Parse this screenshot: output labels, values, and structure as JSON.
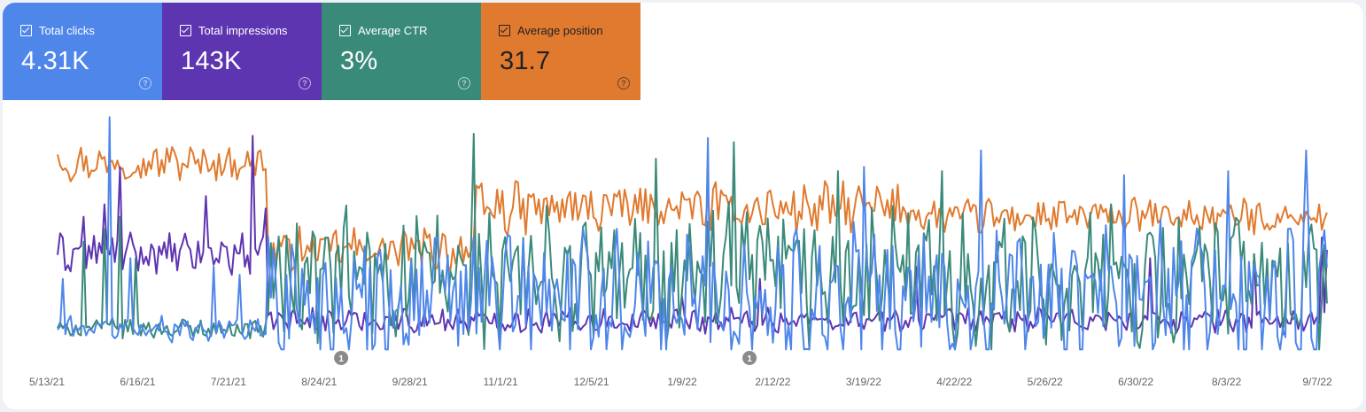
{
  "metrics": [
    {
      "id": "clicks",
      "label": "Total clicks",
      "value": "4.31K",
      "color": "#4e86ea",
      "text_color": "#ffffff",
      "selected": true
    },
    {
      "id": "impressions",
      "label": "Total impressions",
      "value": "143K",
      "color": "#5e35b1",
      "text_color": "#ffffff",
      "selected": true
    },
    {
      "id": "ctr",
      "label": "Average CTR",
      "value": "3%",
      "color": "#3a8a7a",
      "text_color": "#ffffff",
      "selected": true
    },
    {
      "id": "position",
      "label": "Average position",
      "value": "31.7",
      "color": "#e07a2f",
      "text_color": "#202124",
      "selected": true
    }
  ],
  "chart_data": {
    "type": "line",
    "x_start_date": "2021-05-13",
    "x_end_date": "2022-09-12",
    "x_tick_labels": [
      "5/13/21",
      "6/16/21",
      "7/21/21",
      "8/24/21",
      "9/28/21",
      "11/1/21",
      "12/5/21",
      "1/9/22",
      "2/12/22",
      "3/19/22",
      "4/22/22",
      "5/26/22",
      "6/30/22",
      "8/3/22",
      "9/7/22"
    ],
    "annotations": [
      {
        "label": "1",
        "date": "2021-08-30"
      },
      {
        "label": "1",
        "date": "2022-02-03"
      }
    ],
    "normalized": true,
    "y_range": [
      0,
      100
    ],
    "series": [
      {
        "name": "Average position",
        "color": "#e07a2f",
        "segments": [
          {
            "start": 0,
            "end": 80,
            "base": 86,
            "amplitude": 7,
            "spikes": [
              [
                0,
                90
              ],
              [
                42,
                93
              ],
              [
                78,
                92
              ]
            ]
          },
          {
            "start": 81,
            "end": 160,
            "base": 44,
            "amplitude": 9,
            "spikes": []
          },
          {
            "start": 161,
            "end": 330,
            "base": 64,
            "amplitude": 10,
            "spikes": []
          },
          {
            "start": 331,
            "end": 488,
            "base": 60,
            "amplitude": 7,
            "spikes": [
              [
                330,
                72
              ],
              [
                488,
                62
              ]
            ]
          }
        ]
      },
      {
        "name": "Total impressions",
        "color": "#5e35b1",
        "segments": [
          {
            "start": 0,
            "end": 80,
            "base": 42,
            "amplitude": 8,
            "spikes": [
              [
                10,
                60
              ],
              [
                18,
                66
              ],
              [
                24,
                84
              ],
              [
                42,
                40
              ],
              [
                57,
                70
              ],
              [
                75,
                99
              ],
              [
                80,
                64
              ]
            ]
          },
          {
            "start": 81,
            "end": 488,
            "base": 10,
            "amplitude": 5,
            "spikes": [
              [
                240,
                22
              ],
              [
                270,
                30
              ],
              [
                330,
                36
              ],
              [
                420,
                40
              ],
              [
                460,
                42
              ],
              [
                486,
                50
              ],
              [
                488,
                44
              ]
            ]
          }
        ]
      },
      {
        "name": "Average CTR",
        "color": "#3a8a7a",
        "segments": [
          {
            "start": 0,
            "end": 80,
            "base": 6,
            "amplitude": 4,
            "spikes": [
              [
                10,
                48
              ],
              [
                18,
                54
              ],
              [
                24,
                60
              ],
              [
                30,
                40
              ]
            ]
          },
          {
            "start": 81,
            "end": 488,
            "base": 30,
            "amplitude": 28,
            "spikes": [
              [
                160,
                100
              ],
              [
                230,
                88
              ],
              [
                260,
                96
              ],
              [
                300,
                82
              ],
              [
                340,
                82
              ],
              [
                480,
                26
              ]
            ]
          }
        ]
      },
      {
        "name": "Total clicks",
        "color": "#4e86ea",
        "segments": [
          {
            "start": 0,
            "end": 80,
            "base": 6,
            "amplitude": 5,
            "spikes": [
              [
                2,
                30
              ],
              [
                20,
                108
              ],
              [
                28,
                40
              ],
              [
                60,
                36
              ],
              [
                70,
                32
              ]
            ]
          },
          {
            "start": 81,
            "end": 488,
            "base": 20,
            "amplitude": 30,
            "spikes": [
              [
                250,
                98
              ],
              [
                310,
                84
              ],
              [
                355,
                92
              ],
              [
                410,
                80
              ],
              [
                450,
                82
              ],
              [
                480,
                92
              ]
            ]
          }
        ]
      }
    ]
  }
}
